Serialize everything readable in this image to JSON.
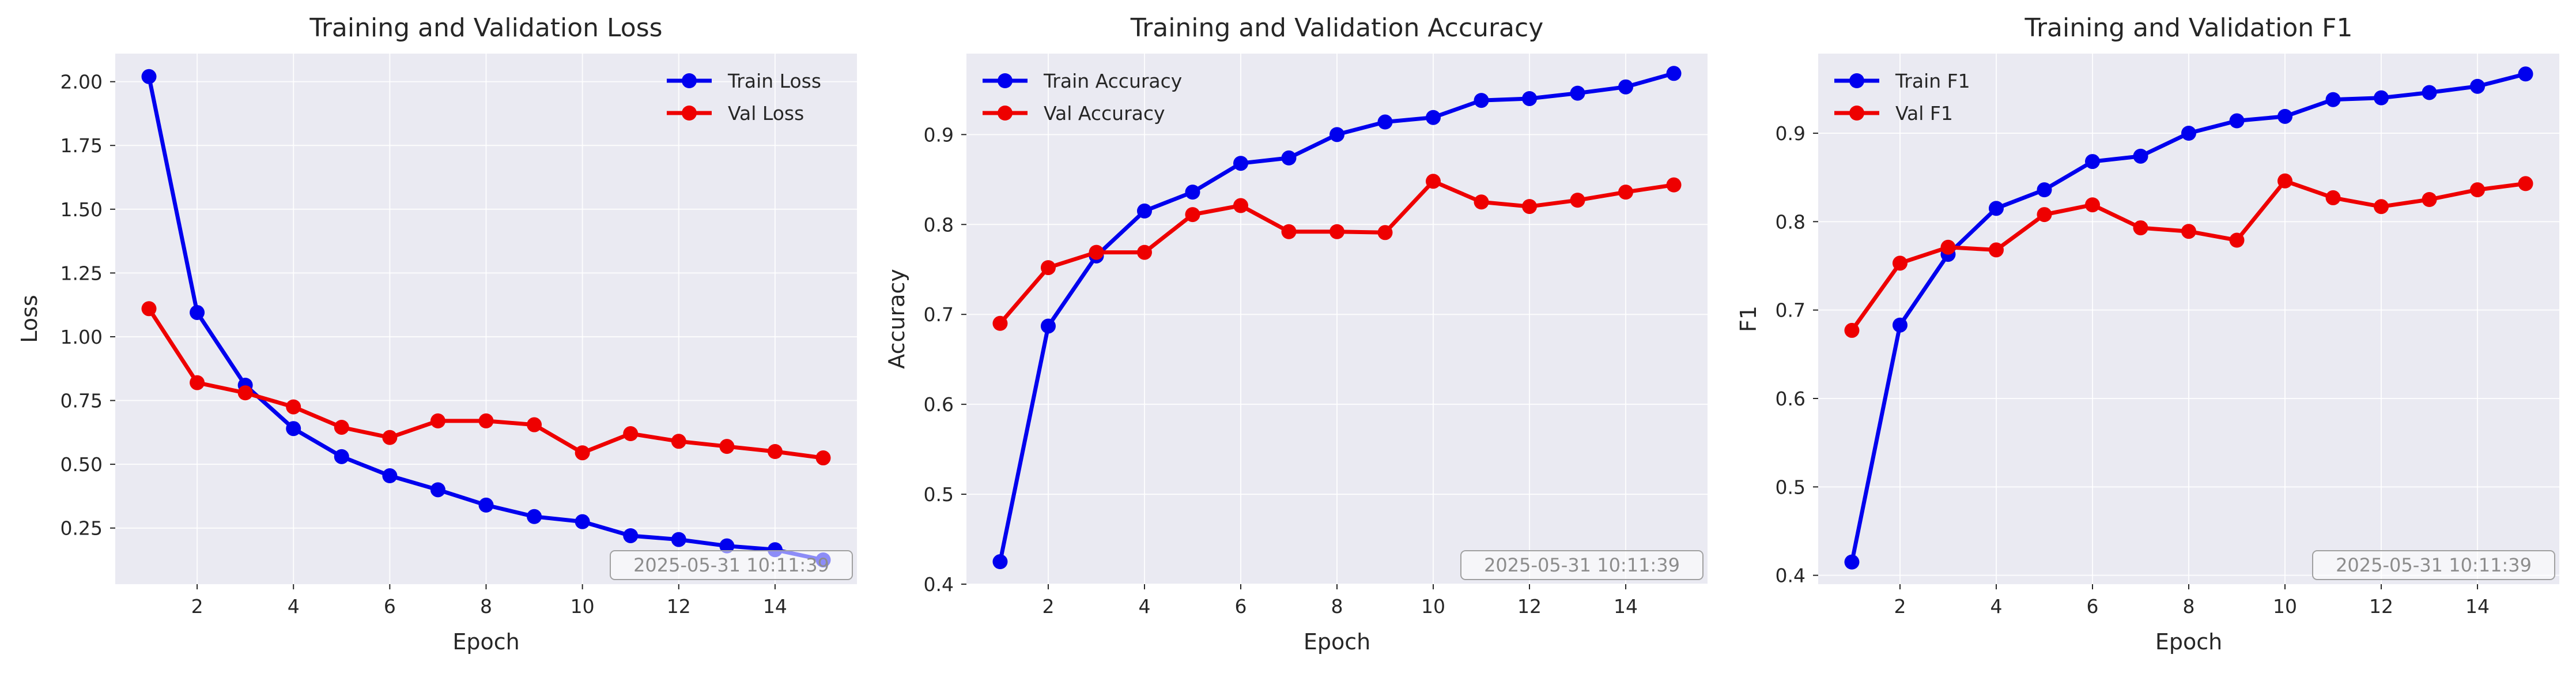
{
  "colors": {
    "train": "#0000ee",
    "val": "#ee0000",
    "plot_background": "#eaeaf2",
    "grid": "#ffffff",
    "stamp_text": "#8c8c8c",
    "stamp_border": "#a0a0a0"
  },
  "timestamp": "2025-05-31 10:11:39",
  "chart_data": [
    {
      "type": "line",
      "title": "Training and Validation Loss",
      "xlabel": "Epoch",
      "ylabel": "Loss",
      "x": [
        1,
        2,
        3,
        4,
        5,
        6,
        7,
        8,
        9,
        10,
        11,
        12,
        13,
        14,
        15
      ],
      "xlim": [
        0.3,
        15.7
      ],
      "ylim": [
        0.03,
        2.11
      ],
      "xticks": [
        2,
        4,
        6,
        8,
        10,
        12,
        14
      ],
      "yticks": [
        0.25,
        0.5,
        0.75,
        1.0,
        1.25,
        1.5,
        1.75,
        2.0
      ],
      "ytick_labels": [
        "0.25",
        "0.50",
        "0.75",
        "1.00",
        "1.25",
        "1.50",
        "1.75",
        "2.00"
      ],
      "grid": true,
      "legend_position": "upper right",
      "series": [
        {
          "name": "Train Loss",
          "color_key": "train",
          "values": [
            2.02,
            1.095,
            0.81,
            0.64,
            0.53,
            0.455,
            0.4,
            0.34,
            0.295,
            0.275,
            0.22,
            0.205,
            0.18,
            0.165,
            0.125
          ]
        },
        {
          "name": "Val Loss",
          "color_key": "val",
          "values": [
            1.11,
            0.82,
            0.78,
            0.725,
            0.645,
            0.605,
            0.67,
            0.67,
            0.655,
            0.545,
            0.62,
            0.59,
            0.57,
            0.55,
            0.525
          ]
        }
      ]
    },
    {
      "type": "line",
      "title": "Training and Validation Accuracy",
      "xlabel": "Epoch",
      "ylabel": "Accuracy",
      "x": [
        1,
        2,
        3,
        4,
        5,
        6,
        7,
        8,
        9,
        10,
        11,
        12,
        13,
        14,
        15
      ],
      "xlim": [
        0.3,
        15.7
      ],
      "ylim": [
        0.4,
        0.99
      ],
      "xticks": [
        2,
        4,
        6,
        8,
        10,
        12,
        14
      ],
      "yticks": [
        0.4,
        0.5,
        0.6,
        0.7,
        0.8,
        0.9
      ],
      "ytick_labels": [
        "0.4",
        "0.5",
        "0.6",
        "0.7",
        "0.8",
        "0.9"
      ],
      "grid": true,
      "legend_position": "upper left",
      "series": [
        {
          "name": "Train Accuracy",
          "color_key": "train",
          "values": [
            0.425,
            0.687,
            0.765,
            0.815,
            0.836,
            0.868,
            0.874,
            0.9,
            0.914,
            0.919,
            0.938,
            0.94,
            0.946,
            0.953,
            0.968
          ]
        },
        {
          "name": "Val Accuracy",
          "color_key": "val",
          "values": [
            0.69,
            0.752,
            0.769,
            0.769,
            0.811,
            0.821,
            0.792,
            0.792,
            0.791,
            0.848,
            0.825,
            0.82,
            0.827,
            0.836,
            0.844
          ]
        }
      ]
    },
    {
      "type": "line",
      "title": "Training and Validation F1",
      "xlabel": "Epoch",
      "ylabel": "F1",
      "x": [
        1,
        2,
        3,
        4,
        5,
        6,
        7,
        8,
        9,
        10,
        11,
        12,
        13,
        14,
        15
      ],
      "xlim": [
        0.3,
        15.7
      ],
      "ylim": [
        0.39,
        0.99
      ],
      "xticks": [
        2,
        4,
        6,
        8,
        10,
        12,
        14
      ],
      "yticks": [
        0.4,
        0.5,
        0.6,
        0.7,
        0.8,
        0.9
      ],
      "ytick_labels": [
        "0.4",
        "0.5",
        "0.6",
        "0.7",
        "0.8",
        "0.9"
      ],
      "grid": true,
      "legend_position": "upper left",
      "series": [
        {
          "name": "Train F1",
          "color_key": "train",
          "values": [
            0.415,
            0.683,
            0.763,
            0.815,
            0.836,
            0.868,
            0.874,
            0.9,
            0.914,
            0.919,
            0.938,
            0.94,
            0.946,
            0.953,
            0.967
          ]
        },
        {
          "name": "Val F1",
          "color_key": "val",
          "values": [
            0.677,
            0.753,
            0.771,
            0.768,
            0.808,
            0.819,
            0.793,
            0.789,
            0.779,
            0.846,
            0.827,
            0.817,
            0.825,
            0.836,
            0.843
          ]
        }
      ]
    }
  ]
}
